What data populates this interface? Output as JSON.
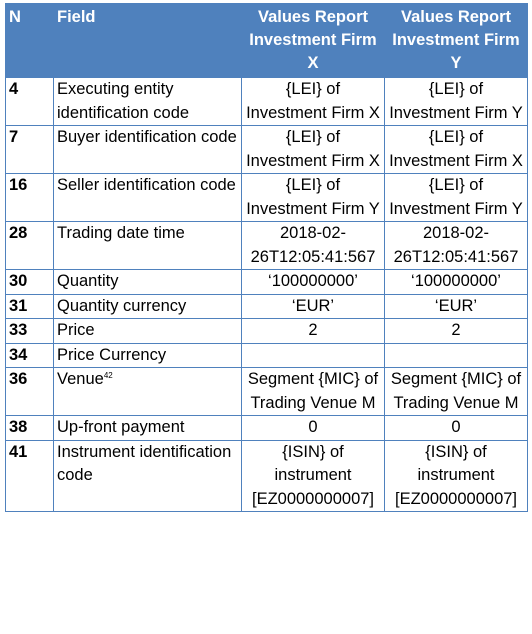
{
  "header": {
    "n": "N",
    "field": "Field",
    "values_x": "Values Report Investment Firm X",
    "values_y": "Values Report Investment Firm Y"
  },
  "rows": [
    {
      "n": "4",
      "field": "Executing entity identification code",
      "sup": "",
      "x": "{LEI} of Investment Firm X",
      "y": "{LEI} of Investment Firm Y"
    },
    {
      "n": "7",
      "field": "Buyer identification code",
      "sup": "",
      "x": "{LEI} of Investment Firm X",
      "y": "{LEI} of Investment Firm X"
    },
    {
      "n": "16",
      "field": "Seller identification code",
      "sup": "",
      "x": "{LEI} of Investment Firm Y",
      "y": "{LEI} of Investment Firm Y"
    },
    {
      "n": "28",
      "field": "Trading date time",
      "sup": "",
      "x": "2018-02-26T12:05:41:567",
      "y": "2018-02-26T12:05:41:567"
    },
    {
      "n": "30",
      "field": "Quantity",
      "sup": "",
      "x": "‘100000000’",
      "y": "‘100000000’"
    },
    {
      "n": "31",
      "field": "Quantity currency",
      "sup": "",
      "x": "‘EUR’",
      "y": "‘EUR’"
    },
    {
      "n": "33",
      "field": "Price",
      "sup": "",
      "x": "2",
      "y": "2"
    },
    {
      "n": "34",
      "field": "Price Currency",
      "sup": "",
      "x": "",
      "y": ""
    },
    {
      "n": "36",
      "field": "Venue",
      "sup": "42",
      "x": "Segment {MIC} of Trading Venue M",
      "y": "Segment {MIC} of Trading Venue M"
    },
    {
      "n": "38",
      "field": "Up-front payment",
      "sup": "",
      "x": "0",
      "y": "0"
    },
    {
      "n": "41",
      "field": "Instrument identification code",
      "sup": "",
      "x": "{ISIN} of instrument [EZ0000000007]",
      "y": "{ISIN} of instrument [EZ0000000007]"
    }
  ]
}
